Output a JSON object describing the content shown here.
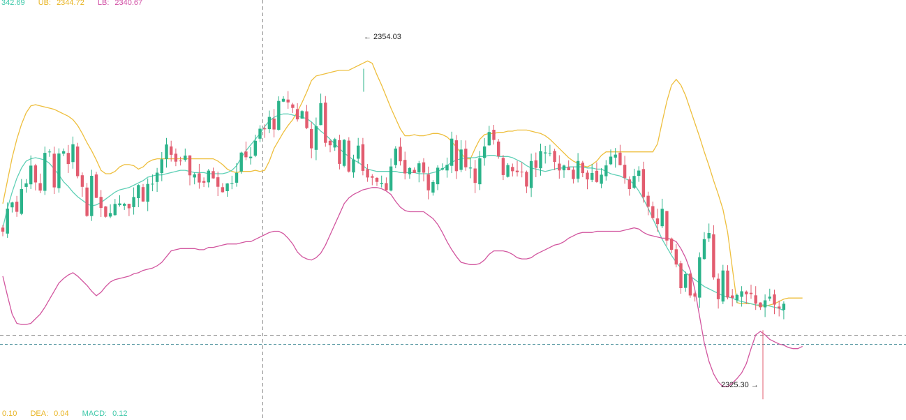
{
  "boll_legend": {
    "mid": {
      "label": "",
      "value": "342.69",
      "color": "#3cc8a8"
    },
    "ub": {
      "label": "UB:",
      "value": "2344.72",
      "color": "#e8b422"
    },
    "lb": {
      "label": "LB:",
      "value": "2340.67",
      "color": "#d24fa5"
    }
  },
  "macd_legend": {
    "dif": {
      "label": "",
      "value": "0.10",
      "color": "#e8b422"
    },
    "dea": {
      "label": "DEA:",
      "value": "0.04",
      "color": "#e8b422"
    },
    "macd": {
      "label": "MACD:",
      "value": "0.12",
      "color": "#3cc8a8"
    }
  },
  "annotations": {
    "high_text": "← 2354.03",
    "low_text": "2325.30 →"
  },
  "colors": {
    "up": "#2bb38a",
    "down": "#e25c6f",
    "mid": "#5fd0b6",
    "ub": "#eebf3e",
    "lb": "#d2569f",
    "crosshair": "#8a8a8a",
    "price_line": "#4a8f9a",
    "grid": "#f2f2f2"
  },
  "chart_data": {
    "type": "candlestick",
    "overlay": "Bollinger Bands",
    "y_range": [
      2323.5,
      2360.0
    ],
    "bar_count": 170,
    "highest": 2354.03,
    "lowest": 2325.3,
    "grid": false,
    "mid_band": [
      2340.2,
      2341.9,
      2343.3,
      2344.5,
      2345.4,
      2346.0,
      2346.2,
      2346.3,
      2346.2,
      2346.1,
      2345.8,
      2345.3,
      2344.8,
      2344.2,
      2343.8,
      2343.3,
      2342.9,
      2342.6,
      2342.3,
      2342.1,
      2342.2,
      2342.4,
      2342.7,
      2343.0,
      2343.3,
      2343.5,
      2343.6,
      2343.7,
      2343.9,
      2344.1,
      2344.3,
      2344.6,
      2344.7,
      2344.8,
      2344.8,
      2344.9,
      2345.0,
      2345.1,
      2345.2,
      2345.2,
      2345.1,
      2345.0,
      2345.0,
      2345.0,
      2344.9,
      2344.9,
      2344.9,
      2344.9,
      2345.0,
      2345.2,
      2345.6,
      2346.3,
      2346.9,
      2347.4,
      2347.9,
      2348.4,
      2349.0,
      2349.5,
      2349.8,
      2350.0,
      2350.1,
      2350.1,
      2350.0,
      2349.9,
      2349.8,
      2349.7,
      2349.4,
      2349.0,
      2348.6,
      2348.3,
      2347.9,
      2347.5,
      2347.1,
      2346.7,
      2346.4,
      2346.1,
      2345.9,
      2345.6,
      2345.3,
      2345.2,
      2345.1,
      2345.1,
      2345.1,
      2345.1,
      2345.1,
      2345.0,
      2345.0,
      2345.0,
      2345.0,
      2344.9,
      2344.9,
      2344.9,
      2345.0,
      2345.1,
      2345.3,
      2345.6,
      2345.9,
      2346.1,
      2346.2,
      2346.3,
      2346.3,
      2346.3,
      2346.4,
      2346.4,
      2346.5,
      2346.5,
      2346.4,
      2346.4,
      2346.4,
      2346.3,
      2346.1,
      2345.9,
      2345.6,
      2345.4,
      2345.3,
      2345.2,
      2345.1,
      2345.2,
      2345.3,
      2345.4,
      2345.4,
      2345.5,
      2345.5,
      2345.5,
      2345.5,
      2345.4,
      2345.4,
      2345.3,
      2345.3,
      2345.1,
      2344.9,
      2344.8,
      2344.7,
      2344.5,
      2344.3,
      2344.0,
      2343.4,
      2342.7,
      2341.9,
      2341.0,
      2340.1,
      2339.2,
      2338.5,
      2337.8,
      2337.2,
      2336.7,
      2336.3,
      2336.0,
      2335.7,
      2335.4,
      2335.1,
      2334.9,
      2334.7,
      2334.5,
      2334.3,
      2334.2,
      2334.1,
      2333.9,
      2333.8,
      2333.7,
      2333.6,
      2333.5,
      2333.5,
      2333.5,
      2333.4,
      2333.3,
      2333.2,
      2333.0
    ],
    "upper_band": [
      2342.3,
      2344.3,
      2346.3,
      2347.9,
      2349.2,
      2350.2,
      2350.8,
      2350.9,
      2350.8,
      2350.7,
      2350.6,
      2350.5,
      2350.3,
      2350.1,
      2349.9,
      2349.6,
      2349.1,
      2348.4,
      2347.6,
      2346.9,
      2346.1,
      2345.2,
      2344.9,
      2344.9,
      2345.1,
      2345.5,
      2345.7,
      2345.7,
      2345.6,
      2345.3,
      2345.5,
      2345.9,
      2346.1,
      2346.2,
      2346.2,
      2346.2,
      2346.2,
      2346.2,
      2346.2,
      2346.2,
      2346.2,
      2346.2,
      2346.2,
      2346.2,
      2346.2,
      2346.2,
      2346.0,
      2345.7,
      2345.3,
      2345.1,
      2345.0,
      2345.1,
      2345.1,
      2345.1,
      2345.2,
      2345.1,
      2345.2,
      2346.0,
      2347.1,
      2347.8,
      2348.5,
      2349.1,
      2349.6,
      2350.3,
      2351.1,
      2352.0,
      2353.0,
      2353.4,
      2353.5,
      2353.6,
      2353.7,
      2353.8,
      2353.9,
      2353.9,
      2353.9,
      2354.1,
      2354.3,
      2354.5,
      2354.7,
      2354.5,
      2353.5,
      2352.6,
      2351.6,
      2350.6,
      2349.7,
      2348.8,
      2348.2,
      2348.2,
      2348.3,
      2348.2,
      2348.2,
      2348.3,
      2348.4,
      2348.4,
      2348.3,
      2348.1,
      2347.7,
      2347.2,
      2346.7,
      2346.2,
      2346.2,
      2347.1,
      2347.9,
      2348.3,
      2348.4,
      2348.4,
      2348.5,
      2348.5,
      2348.6,
      2348.6,
      2348.7,
      2348.7,
      2348.7,
      2348.6,
      2348.5,
      2348.4,
      2348.2,
      2347.9,
      2347.5,
      2347.1,
      2346.7,
      2346.3,
      2346.0,
      2345.8,
      2345.6,
      2345.5,
      2345.7,
      2346.0,
      2346.5,
      2346.8,
      2346.8,
      2346.8,
      2346.8,
      2346.8,
      2346.8,
      2346.8,
      2346.8,
      2346.8,
      2346.8,
      2346.8,
      2347.5,
      2349.4,
      2351.2,
      2352.6,
      2353.1,
      2352.6,
      2351.7,
      2350.5,
      2349.3,
      2348.1,
      2346.8,
      2345.6,
      2344.3,
      2343.1,
      2341.8,
      2339.8,
      2336.7,
      2333.7,
      2333.6,
      2333.6,
      2333.6,
      2333.5,
      2333.4,
      2333.4,
      2333.5,
      2333.6,
      2333.8,
      2334.0,
      2334.1,
      2334.1,
      2334.1,
      2334.1
    ],
    "lower_band": [
      2336.0,
      2334.3,
      2332.7,
      2331.9,
      2331.8,
      2331.8,
      2331.9,
      2332.3,
      2332.7,
      2333.3,
      2334.0,
      2334.7,
      2335.4,
      2335.8,
      2336.1,
      2336.3,
      2336.0,
      2335.6,
      2335.2,
      2334.7,
      2334.3,
      2334.6,
      2335.1,
      2335.5,
      2335.7,
      2335.8,
      2335.9,
      2336.0,
      2336.2,
      2336.3,
      2336.5,
      2336.6,
      2336.7,
      2336.9,
      2337.2,
      2337.7,
      2338.2,
      2338.3,
      2338.4,
      2338.4,
      2338.4,
      2338.4,
      2338.3,
      2338.3,
      2338.5,
      2338.5,
      2338.6,
      2338.7,
      2338.8,
      2338.8,
      2338.8,
      2338.9,
      2339.0,
      2339.0,
      2339.2,
      2339.4,
      2339.6,
      2339.8,
      2339.9,
      2339.9,
      2339.7,
      2339.3,
      2338.8,
      2338.1,
      2337.7,
      2337.5,
      2337.4,
      2337.6,
      2338.0,
      2338.7,
      2339.6,
      2340.5,
      2341.4,
      2342.3,
      2342.8,
      2343.1,
      2343.3,
      2343.5,
      2343.6,
      2343.7,
      2343.7,
      2343.6,
      2343.4,
      2343.1,
      2342.5,
      2342.0,
      2341.7,
      2341.6,
      2341.6,
      2341.6,
      2341.6,
      2341.3,
      2341.0,
      2340.5,
      2339.8,
      2339.0,
      2338.3,
      2337.7,
      2337.2,
      2337.1,
      2337.0,
      2337.0,
      2337.1,
      2337.4,
      2337.9,
      2338.2,
      2338.2,
      2338.2,
      2338.1,
      2337.9,
      2337.6,
      2337.5,
      2337.5,
      2337.6,
      2337.9,
      2338.1,
      2338.3,
      2338.5,
      2338.7,
      2338.8,
      2339.0,
      2339.3,
      2339.5,
      2339.7,
      2339.8,
      2339.8,
      2339.8,
      2339.9,
      2339.9,
      2339.9,
      2339.9,
      2339.9,
      2339.9,
      2340.0,
      2340.1,
      2340.2,
      2340.1,
      2339.8,
      2339.6,
      2339.5,
      2339.4,
      2339.3,
      2339.3,
      2339.2,
      2339.0,
      2338.4,
      2337.6,
      2336.5,
      2334.8,
      2332.5,
      2330.2,
      2328.6,
      2327.5,
      2326.8,
      2326.4,
      2326.4,
      2326.7,
      2327.1,
      2327.6,
      2328.4,
      2329.7,
      2330.9,
      2331.2,
      2330.9,
      2330.5,
      2330.3,
      2330.1,
      2330.0,
      2329.8,
      2329.7,
      2329.7,
      2329.9
    ]
  }
}
